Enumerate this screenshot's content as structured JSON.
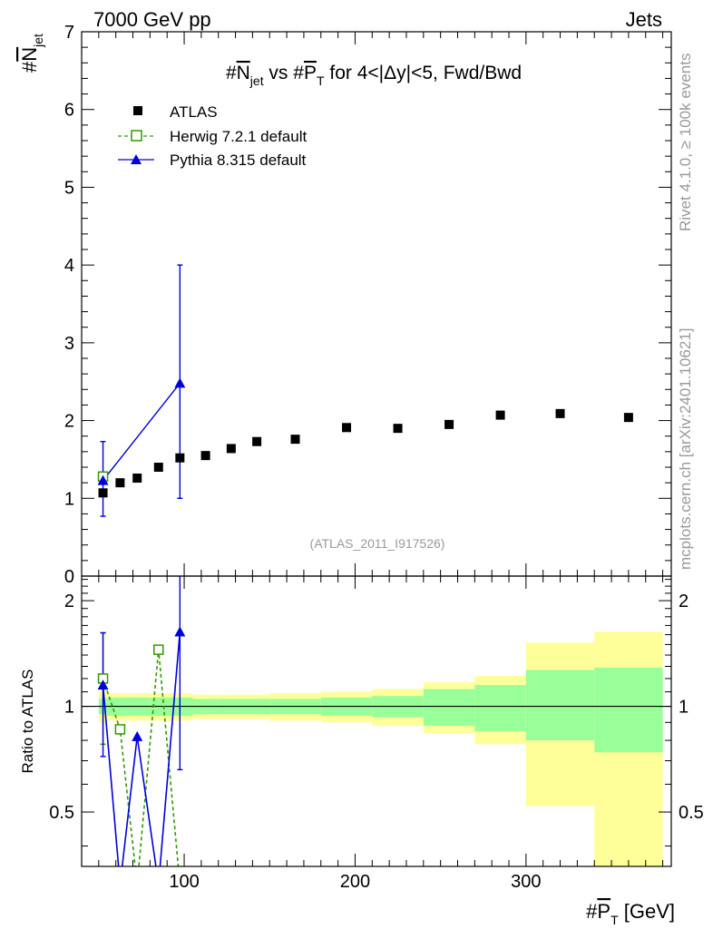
{
  "header": {
    "left": "7000 GeV pp",
    "right": "Jets"
  },
  "side_labels": {
    "rivet": "Rivet 4.1.0, ≥ 100k events",
    "mcplots": "mcplots.cern.ch [arXiv:2401.10621]"
  },
  "chart_data": [
    {
      "type": "scatter",
      "panel": "main",
      "title": "#Njet vs #PT for 4<|Δy|<5, Fwd/Bwd",
      "title_parts": {
        "hash1": "#",
        "n": "N",
        "n_sub": "jet",
        "vs": " vs #",
        "p": "P",
        "p_sub": "T",
        "rest": " for 4<|Δy|<5, Fwd/Bwd"
      },
      "ylabel": "#Njet",
      "ylabel_parts": {
        "hash": "#",
        "n": "N",
        "sub": "jet"
      },
      "xlim": [
        40,
        385
      ],
      "ylim": [
        0,
        7
      ],
      "yticks": [
        0,
        1,
        2,
        3,
        4,
        5,
        6,
        7
      ],
      "watermark": "(ATLAS_2011_I917526)",
      "legend_position": "top-left",
      "series": [
        {
          "name": "ATLAS",
          "marker": "square",
          "color": "#000000",
          "x": [
            52.5,
            62.5,
            72.5,
            85,
            97.5,
            112.5,
            127.5,
            142.5,
            165,
            195,
            225,
            255,
            285,
            320,
            360
          ],
          "y": [
            1.07,
            1.2,
            1.26,
            1.4,
            1.52,
            1.55,
            1.64,
            1.73,
            1.76,
            1.91,
            1.9,
            1.95,
            2.07,
            2.09,
            2.04
          ]
        },
        {
          "name": "Herwig 7.2.1 default",
          "marker": "open-square",
          "line": "dashed",
          "color": "#339900",
          "x": [
            52.5
          ],
          "y": [
            1.28
          ]
        },
        {
          "name": "Pythia 8.315 default",
          "marker": "triangle",
          "line": "solid",
          "color": "#0000dd",
          "x": [
            52.5,
            97.5
          ],
          "y": [
            1.23,
            2.48
          ],
          "yerr_low": [
            0.46,
            1.48
          ],
          "yerr_high": [
            0.5,
            1.52
          ]
        }
      ]
    },
    {
      "type": "line",
      "panel": "ratio",
      "ylabel": "Ratio to ATLAS",
      "xlabel": "#PT [GeV]",
      "xlabel_parts": {
        "hash": "#",
        "p": "P",
        "sub": "T",
        "unit": " [GeV]"
      },
      "xlim": [
        40,
        385
      ],
      "ylim": [
        0.35,
        2.35
      ],
      "ylog": true,
      "yticks": [
        0.5,
        1,
        2
      ],
      "ytick_labels": [
        "0.5",
        "1",
        "2"
      ],
      "xticks": [
        100,
        200,
        300
      ],
      "xtick_labels": [
        "100",
        "200",
        "300"
      ],
      "bands": {
        "bin_edges": [
          50,
          55,
          70,
          80,
          90,
          105,
          120,
          135,
          150,
          180,
          210,
          240,
          270,
          300,
          340,
          380
        ],
        "inner_low": [
          0.95,
          0.94,
          0.94,
          0.94,
          0.94,
          0.95,
          0.95,
          0.95,
          0.95,
          0.94,
          0.93,
          0.88,
          0.85,
          0.8,
          0.74
        ],
        "inner_high": [
          1.05,
          1.06,
          1.06,
          1.06,
          1.06,
          1.05,
          1.05,
          1.05,
          1.05,
          1.06,
          1.07,
          1.12,
          1.15,
          1.27,
          1.29
        ],
        "outer_low": [
          0.9,
          0.91,
          0.91,
          0.91,
          0.91,
          0.92,
          0.92,
          0.92,
          0.91,
          0.9,
          0.88,
          0.84,
          0.78,
          0.52,
          0.33
        ],
        "outer_high": [
          1.1,
          1.09,
          1.09,
          1.09,
          1.09,
          1.08,
          1.08,
          1.08,
          1.09,
          1.1,
          1.12,
          1.17,
          1.22,
          1.52,
          1.63
        ],
        "inner_color": "#99ff99",
        "outer_color": "#ffff99"
      },
      "series": [
        {
          "name": "Herwig 7.2.1 default",
          "color": "#339900",
          "line": "dashed",
          "x": [
            52.5,
            62.5,
            72.5,
            85,
            97.5
          ],
          "y": [
            1.2,
            0.86,
            0.0,
            1.45,
            0.0
          ],
          "markers": [
            true,
            true,
            false,
            true,
            false
          ],
          "yerr_low": [
            0.42,
            0.0,
            0.0,
            0.0,
            0.0
          ],
          "yerr_high": [
            0.42,
            0.0,
            0.0,
            0.0,
            0.0
          ]
        },
        {
          "name": "Pythia 8.315 default",
          "color": "#0000dd",
          "line": "solid",
          "x": [
            52.5,
            62.5,
            72.5,
            85,
            97.5
          ],
          "y": [
            1.15,
            0.0,
            0.82,
            0.0,
            1.63
          ],
          "markers": [
            true,
            false,
            true,
            false,
            true
          ],
          "yerr_low": [
            0.43,
            0.0,
            0.0,
            0.0,
            0.97
          ],
          "yerr_high": [
            0.47,
            0.0,
            0.0,
            0.0,
            1.0
          ]
        }
      ]
    }
  ]
}
